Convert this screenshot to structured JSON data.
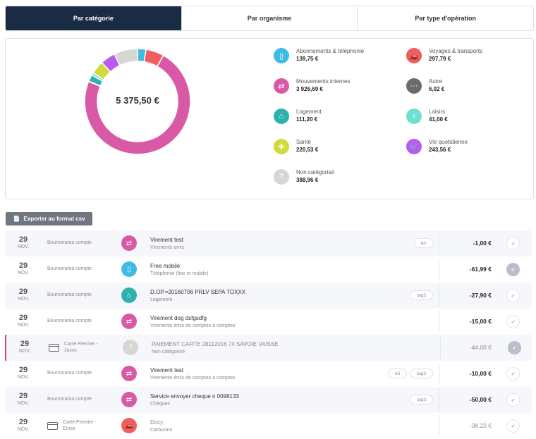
{
  "tabs": [
    {
      "label": "Par catégorie",
      "active": true
    },
    {
      "label": "Par organisme",
      "active": false
    },
    {
      "label": "Par type d'opération",
      "active": false
    }
  ],
  "summary": {
    "total": "5 375,50 €",
    "categories": [
      {
        "label": "Abonnements & téléphonie",
        "value": "139,75 €",
        "amount": 139.75,
        "color": "#3fbbe3",
        "icon": "phone-icon"
      },
      {
        "label": "Voyages & transports",
        "value": "297,79 €",
        "amount": 297.79,
        "color": "#f25d5d",
        "icon": "car-icon"
      },
      {
        "label": "Mouvements internes",
        "value": "3 926,69 €",
        "amount": 3926.69,
        "color": "#d85aa6",
        "icon": "transfer-icon"
      },
      {
        "label": "Autre",
        "value": "6,02 €",
        "amount": 6.02,
        "color": "#6b6b6b",
        "icon": "more-icon"
      },
      {
        "label": "Logement",
        "value": "111,20 €",
        "amount": 111.2,
        "color": "#2db3ad",
        "icon": "home-icon"
      },
      {
        "label": "Loisirs",
        "value": "41,00 €",
        "amount": 41.0,
        "color": "#6fe0cf",
        "icon": "balloon-icon"
      },
      {
        "label": "Santé",
        "value": "220,53 €",
        "amount": 220.53,
        "color": "#d2d93a",
        "icon": "plus-icon"
      },
      {
        "label": "Vie quotidienne",
        "value": "243,56 €",
        "amount": 243.56,
        "color": "#b95af0",
        "icon": "cart-icon"
      },
      {
        "label": "Non catégorisé",
        "value": "388,96 €",
        "amount": 388.96,
        "color": "#d6d6d3",
        "icon": "question-icon"
      }
    ]
  },
  "export_label": "Exporter au format csv",
  "transactions": [
    {
      "day": "29",
      "month": "NOV.",
      "account": "Boursorama compte",
      "card": false,
      "title": "Virement test",
      "category": "Virements emis",
      "icon": "transfer-icon",
      "color": "#d85aa6",
      "tags": [
        "éö"
      ],
      "amount": "-1,00 €",
      "checked": false,
      "muted": false
    },
    {
      "day": "29",
      "month": "NOV.",
      "account": "Boursorama compte",
      "card": false,
      "title": "Free mobile",
      "category": "Téléphonie (fixe et mobile)",
      "icon": "phone-icon",
      "color": "#3fbbe3",
      "tags": [],
      "amount": "-61,99 €",
      "checked": true,
      "muted": false
    },
    {
      "day": "29",
      "month": "NOV.",
      "account": "Boursorama compte",
      "card": false,
      "title": "D.OP.=20160706 PRLV SEPA TOXXX",
      "category": "Logement",
      "icon": "home-icon",
      "color": "#2db3ad",
      "tags": [
        "tag3"
      ],
      "amount": "-27,90 €",
      "checked": false,
      "muted": false
    },
    {
      "day": "29",
      "month": "NOV.",
      "account": "Boursorama compte",
      "card": false,
      "title": "Virement dog dsfgsdfg",
      "category": "Virements émis de comptes à comptes",
      "icon": "transfer-icon",
      "color": "#d85aa6",
      "tags": [],
      "amount": "-15,00 €",
      "checked": false,
      "muted": false
    },
    {
      "day": "29",
      "month": "NOV.",
      "account": "Carte Premier - Juxxx",
      "card": true,
      "title": "PAIEMENT CARTE 28112016 74 SAVOIE VAISSE",
      "category": "Non catégorisé",
      "icon": "question-icon",
      "color": "#d6d6d3",
      "tags": [],
      "amount": "-44,00 €",
      "checked": true,
      "muted": true,
      "flag": true
    },
    {
      "day": "29",
      "month": "NOV.",
      "account": "Boursorama compte",
      "card": false,
      "title": "Virement test",
      "category": "Virements émis de comptes à comptes",
      "icon": "transfer-icon",
      "color": "#d85aa6",
      "tags": [
        "éö",
        "tag3"
      ],
      "amount": "-10,00 €",
      "checked": false,
      "muted": false
    },
    {
      "day": "29",
      "month": "NOV.",
      "account": "Boursorama compte",
      "card": false,
      "title": "Service envoyer cheque n 0099133",
      "category": "Chèques",
      "icon": "transfer-icon",
      "color": "#d85aa6",
      "tags": [
        "tag3"
      ],
      "amount": "-50,00 €",
      "checked": false,
      "muted": false
    },
    {
      "day": "29",
      "month": "NOV.",
      "account": "Carte Premier - Erxxx",
      "card": true,
      "title": "Docy",
      "category": "Carburant",
      "icon": "car-icon",
      "color": "#f25d5d",
      "tags": [],
      "amount": "-38,22 €",
      "checked": false,
      "muted": true
    }
  ]
}
